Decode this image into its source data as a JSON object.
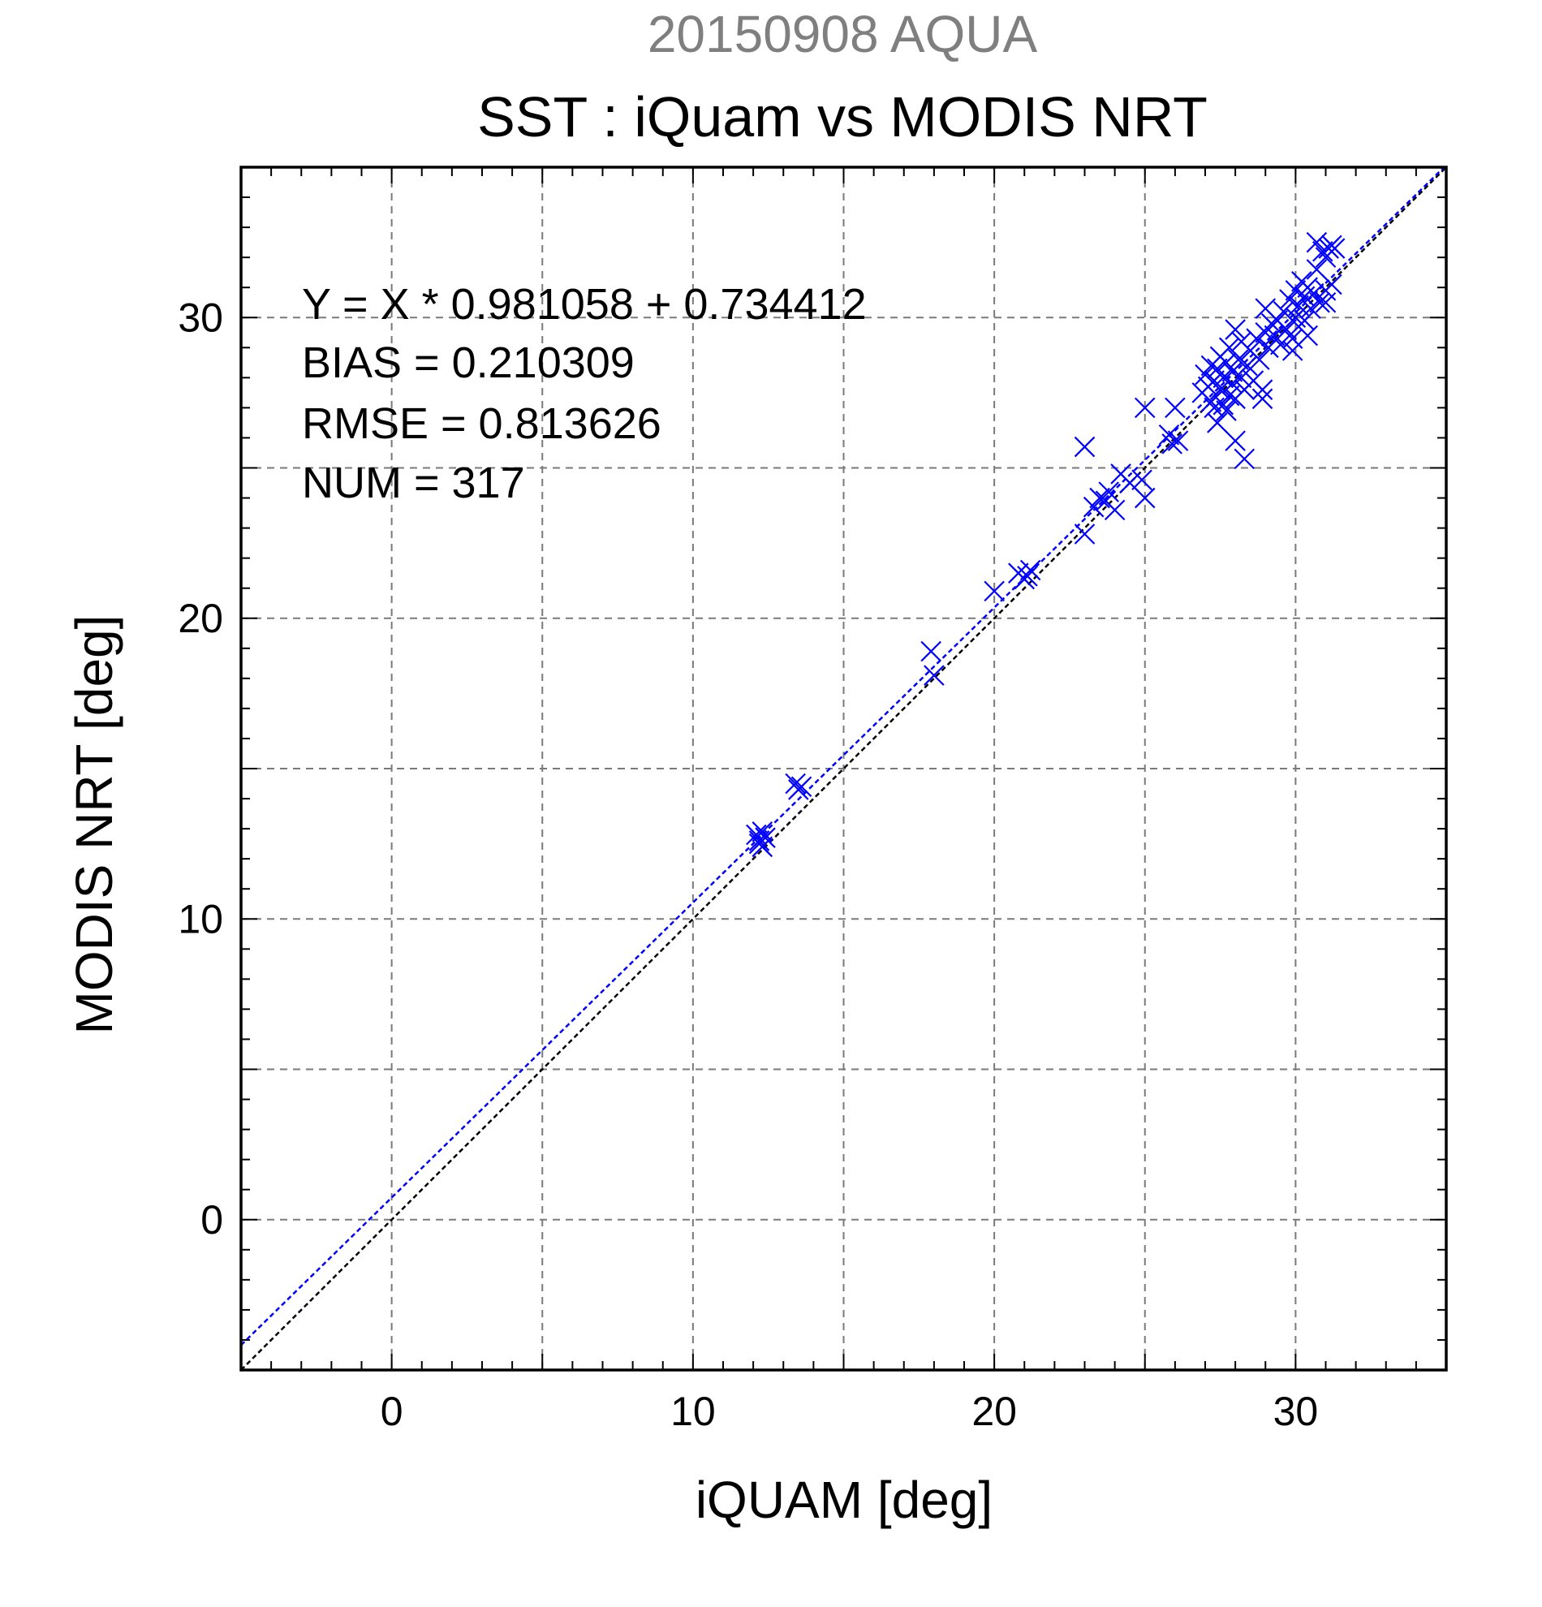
{
  "chart_data": {
    "type": "scatter",
    "supertitle": "20150908 AQUA",
    "title": "SST : iQuam vs MODIS NRT",
    "xlabel": "iQUAM [deg]",
    "ylabel": "MODIS NRT [deg]",
    "xlim": [
      -5,
      35
    ],
    "ylim": [
      -5,
      35
    ],
    "xticks": [
      0,
      10,
      20,
      30
    ],
    "yticks": [
      0,
      10,
      20,
      30
    ],
    "grid": true,
    "colors": {
      "points": "#0000ff",
      "fit_line": "#0000ff",
      "identity_line": "#000000"
    },
    "stats": {
      "equation": "Y = X * 0.981058 + 0.734412",
      "bias": "BIAS = 0.210309",
      "rmse": "RMSE = 0.813626",
      "num": "NUM = 317"
    },
    "fit": {
      "slope": 0.981058,
      "intercept": 0.734412
    },
    "identity": {
      "slope": 1,
      "intercept": 0
    },
    "points": [
      [
        12.1,
        12.8
      ],
      [
        12.2,
        12.6
      ],
      [
        12.3,
        12.4
      ],
      [
        12.4,
        12.7
      ],
      [
        12.2,
        12.5
      ],
      [
        12.3,
        12.9
      ],
      [
        13.4,
        14.5
      ],
      [
        13.5,
        14.3
      ],
      [
        13.6,
        14.4
      ],
      [
        17.9,
        18.9
      ],
      [
        18.0,
        18.1
      ],
      [
        20.0,
        20.9
      ],
      [
        20.8,
        21.5
      ],
      [
        21.0,
        21.3
      ],
      [
        21.2,
        21.6
      ],
      [
        21.1,
        21.4
      ],
      [
        23.0,
        25.7
      ],
      [
        23.0,
        22.8
      ],
      [
        23.3,
        23.7
      ],
      [
        23.5,
        24.0
      ],
      [
        23.7,
        23.9
      ],
      [
        24.0,
        23.6
      ],
      [
        23.8,
        24.2
      ],
      [
        24.2,
        24.8
      ],
      [
        24.5,
        24.5
      ],
      [
        24.9,
        24.6
      ],
      [
        25.0,
        24.0
      ],
      [
        25.0,
        27.0
      ],
      [
        25.8,
        26.1
      ],
      [
        25.9,
        25.8
      ],
      [
        26.1,
        25.9
      ],
      [
        26.0,
        27.0
      ],
      [
        26.9,
        27.5
      ],
      [
        27.0,
        28.1
      ],
      [
        27.1,
        27.7
      ],
      [
        27.2,
        27.2
      ],
      [
        27.2,
        28.4
      ],
      [
        27.3,
        27.0
      ],
      [
        27.3,
        27.9
      ],
      [
        27.4,
        26.5
      ],
      [
        27.4,
        28.3
      ],
      [
        27.5,
        27.6
      ],
      [
        27.5,
        28.7
      ],
      [
        27.6,
        27.1
      ],
      [
        27.6,
        28.0
      ],
      [
        27.7,
        26.9
      ],
      [
        27.7,
        28.5
      ],
      [
        27.8,
        27.4
      ],
      [
        27.8,
        29.0
      ],
      [
        27.9,
        27.8
      ],
      [
        27.9,
        28.2
      ],
      [
        28.0,
        25.9
      ],
      [
        28.0,
        29.6
      ],
      [
        28.0,
        27.3
      ],
      [
        28.1,
        28.6
      ],
      [
        28.2,
        28.0
      ],
      [
        28.2,
        29.2
      ],
      [
        28.3,
        25.3
      ],
      [
        28.3,
        27.6
      ],
      [
        28.4,
        28.4
      ],
      [
        28.5,
        28.9
      ],
      [
        28.6,
        27.9
      ],
      [
        28.7,
        29.3
      ],
      [
        28.8,
        28.6
      ],
      [
        28.9,
        27.3
      ],
      [
        28.9,
        27.6
      ],
      [
        29.0,
        29.5
      ],
      [
        29.0,
        30.3
      ],
      [
        29.1,
        29.0
      ],
      [
        29.2,
        29.8
      ],
      [
        29.3,
        29.4
      ],
      [
        29.4,
        29.9
      ],
      [
        29.5,
        29.1
      ],
      [
        29.6,
        30.2
      ],
      [
        29.7,
        29.6
      ],
      [
        29.8,
        30.6
      ],
      [
        29.9,
        28.9
      ],
      [
        29.9,
        29.3
      ],
      [
        30.0,
        30.0
      ],
      [
        30.0,
        30.9
      ],
      [
        30.1,
        29.7
      ],
      [
        30.1,
        30.4
      ],
      [
        30.2,
        31.2
      ],
      [
        30.3,
        29.9
      ],
      [
        30.3,
        30.7
      ],
      [
        30.4,
        29.4
      ],
      [
        30.4,
        31.0
      ],
      [
        30.5,
        30.3
      ],
      [
        30.6,
        30.8
      ],
      [
        30.7,
        31.6
      ],
      [
        30.7,
        32.5
      ],
      [
        30.8,
        30.5
      ],
      [
        30.9,
        32.2
      ],
      [
        31.0,
        30.9
      ],
      [
        31.0,
        30.5
      ],
      [
        31.1,
        32.3
      ],
      [
        31.2,
        32.4
      ],
      [
        31.2,
        31.1
      ],
      [
        31.3,
        32.3
      ],
      [
        31.0,
        32.0
      ]
    ]
  }
}
